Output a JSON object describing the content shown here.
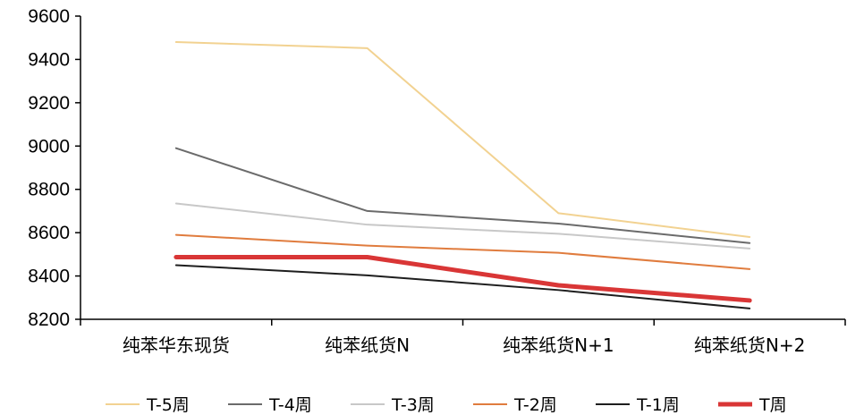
{
  "chart_data": {
    "type": "line",
    "categories": [
      "纯苯华东现货",
      "纯苯纸货N",
      "纯苯纸货N+1",
      "纯苯纸货N+2"
    ],
    "ylim": [
      8200,
      9600
    ],
    "yticks": [
      8200,
      8400,
      8600,
      8800,
      9000,
      9200,
      9400,
      9600
    ],
    "grid": false,
    "legend_position": "bottom",
    "series": [
      {
        "name": "T-5周",
        "color": "#F2D291",
        "width": 2,
        "values": [
          9480,
          9452,
          8690,
          8580
        ]
      },
      {
        "name": "T-4周",
        "color": "#6B6B6B",
        "width": 2,
        "values": [
          8990,
          8700,
          8642,
          8552
        ]
      },
      {
        "name": "T-3周",
        "color": "#C8C8C8",
        "width": 2,
        "values": [
          8735,
          8637,
          8595,
          8527
        ]
      },
      {
        "name": "T-2周",
        "color": "#E07C3E",
        "width": 2,
        "values": [
          8590,
          8540,
          8507,
          8432
        ]
      },
      {
        "name": "T-1周",
        "color": "#1E1E1E",
        "width": 2,
        "values": [
          8450,
          8403,
          8335,
          8250
        ]
      },
      {
        "name": "T周",
        "color": "#D93636",
        "width": 5,
        "values": [
          8487,
          8487,
          8357,
          8287
        ]
      }
    ]
  }
}
